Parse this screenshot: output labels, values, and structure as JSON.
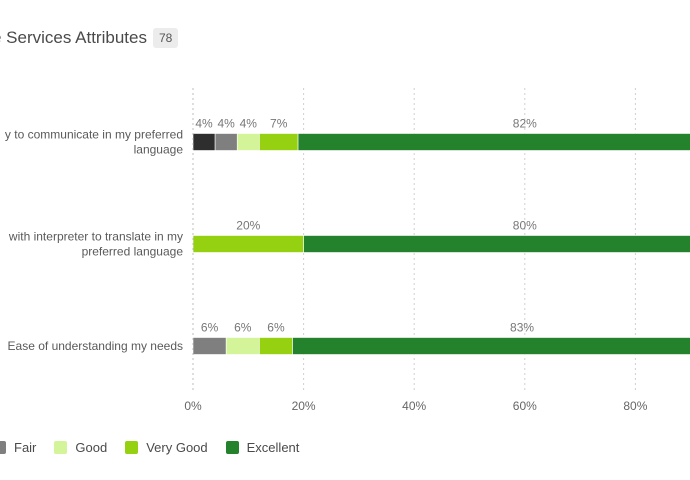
{
  "header": {
    "title": "e Services Attributes",
    "count": "78"
  },
  "chart_data": {
    "type": "bar",
    "orientation": "horizontal",
    "stacked": true,
    "categories": [
      [
        "y to communicate in my preferred",
        "language"
      ],
      [
        "with interpreter to translate in my",
        "preferred language"
      ],
      [
        "Ease of understanding my needs"
      ]
    ],
    "series": [
      {
        "name": "",
        "color": "#2e2e2e",
        "values": [
          4,
          0,
          0
        ],
        "labels": [
          "4%",
          "",
          ""
        ]
      },
      {
        "name": "Fair",
        "color": "#7f7f7f",
        "values": [
          4,
          0,
          6
        ],
        "labels": [
          "4%",
          "",
          "6%"
        ]
      },
      {
        "name": "Good",
        "color": "#d4f49a",
        "values": [
          4,
          0,
          6
        ],
        "labels": [
          "4%",
          "",
          "6%"
        ]
      },
      {
        "name": "Very Good",
        "color": "#95d111",
        "values": [
          7,
          20,
          6
        ],
        "labels": [
          "7%",
          "20%",
          "6%"
        ]
      },
      {
        "name": "Excellent",
        "color": "#24812c",
        "values": [
          82,
          80,
          83
        ],
        "labels": [
          "82%",
          "80%",
          "83%"
        ]
      }
    ],
    "xlim": [
      0,
      100
    ],
    "x_ticks": [
      0,
      20,
      40,
      60,
      80
    ],
    "x_tick_labels": [
      "0%",
      "20%",
      "40%",
      "60%",
      "80%"
    ],
    "grid": true,
    "legend_position": "bottom-left"
  },
  "legend": [
    {
      "label": "Fair",
      "color": "#7f7f7f"
    },
    {
      "label": "Good",
      "color": "#d4f49a"
    },
    {
      "label": "Very Good",
      "color": "#95d111"
    },
    {
      "label": "Excellent",
      "color": "#24812c"
    }
  ]
}
